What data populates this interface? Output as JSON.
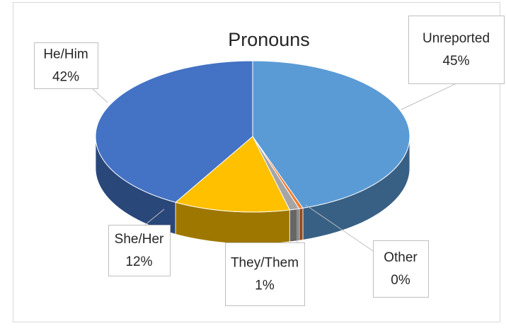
{
  "chart_data": {
    "type": "pie3d",
    "title": "Pronouns",
    "categories": [
      "Unreported",
      "Other",
      "They/Them",
      "She/Her",
      "He/Him"
    ],
    "values": [
      45,
      0.4,
      1,
      12,
      42
    ],
    "value_labels": [
      "45%",
      "0%",
      "1%",
      "12%",
      "42%"
    ],
    "colors": [
      "#5b9bd5",
      "#ed7d31",
      "#a5a5a5",
      "#ffc000",
      "#4472c4"
    ]
  }
}
